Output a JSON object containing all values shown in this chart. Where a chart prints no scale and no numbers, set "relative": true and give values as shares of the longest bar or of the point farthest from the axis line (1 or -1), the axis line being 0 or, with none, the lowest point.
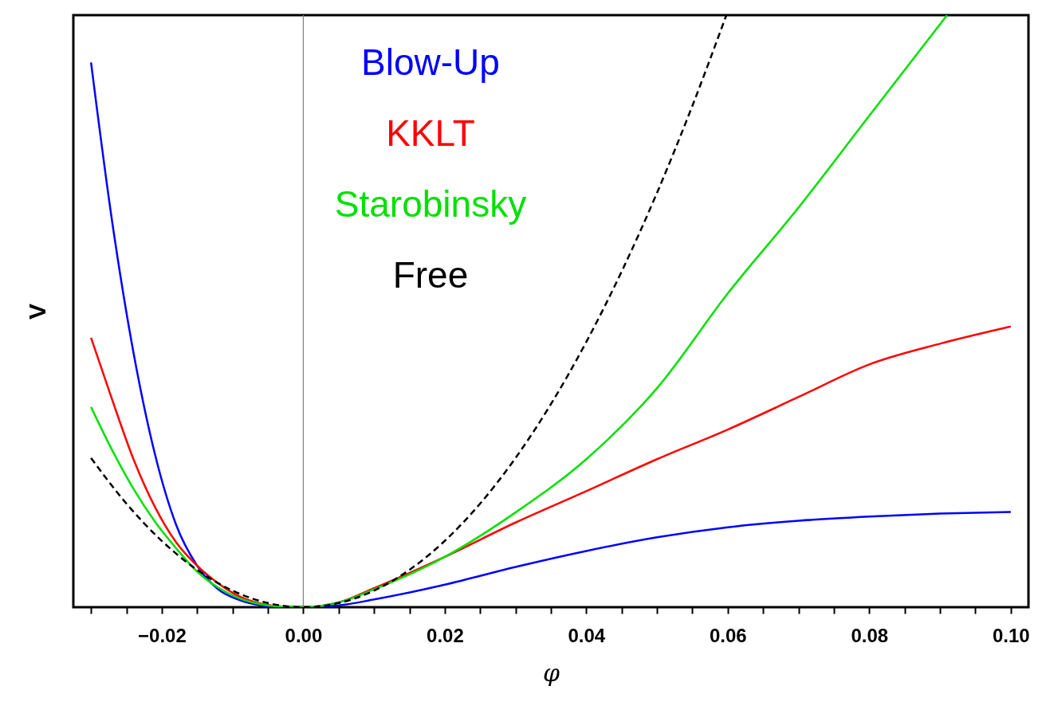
{
  "chart_data": {
    "type": "line",
    "xlabel": "φ",
    "ylabel": "V",
    "relative": true,
    "legend": "top left",
    "xlim": [
      -0.0325,
      0.1025
    ],
    "xticks": [
      {
        "value": -0.03,
        "label": null
      },
      {
        "value": -0.025,
        "label": null
      },
      {
        "value": -0.02,
        "label": "−0.02"
      },
      {
        "value": -0.015,
        "label": null
      },
      {
        "value": -0.01,
        "label": null
      },
      {
        "value": -0.005,
        "label": null
      },
      {
        "value": 0,
        "label": "0.00"
      },
      {
        "value": 0.005,
        "label": null
      },
      {
        "value": 0.01,
        "label": null
      },
      {
        "value": 0.015,
        "label": null
      },
      {
        "value": 0.02,
        "label": "0.02"
      },
      {
        "value": 0.025,
        "label": null
      },
      {
        "value": 0.03,
        "label": null
      },
      {
        "value": 0.035,
        "label": null
      },
      {
        "value": 0.04,
        "label": "0.04"
      },
      {
        "value": 0.045,
        "label": null
      },
      {
        "value": 0.05,
        "label": null
      },
      {
        "value": 0.055,
        "label": null
      },
      {
        "value": 0.06,
        "label": "0.06"
      },
      {
        "value": 0.065,
        "label": null
      },
      {
        "value": 0.07,
        "label": null
      },
      {
        "value": 0.075,
        "label": null
      },
      {
        "value": 0.08,
        "label": "0.08"
      },
      {
        "value": 0.085,
        "label": null
      },
      {
        "value": 0.09,
        "label": null
      },
      {
        "value": 0.095,
        "label": null
      },
      {
        "value": 0.1,
        "label": "0.10"
      }
    ],
    "ref_lines": [
      {
        "axis": "x",
        "value": 0,
        "color": "#808080"
      }
    ],
    "series": [
      {
        "name": "Blow-Up",
        "color": "#0000ff",
        "line_style": "solid",
        "x": [
          -0.03,
          -0.027,
          -0.024,
          -0.021,
          -0.018,
          -0.015,
          -0.012,
          -0.009,
          -0.006,
          -0.003,
          0,
          0.005,
          0.01,
          0.02,
          0.03,
          0.04,
          0.05,
          0.06,
          0.07,
          0.08,
          0.09,
          0.1
        ],
        "values": [
          0.92,
          0.65,
          0.43,
          0.26,
          0.14,
          0.07,
          0.03,
          0.012,
          0.003,
          0,
          0,
          0.003,
          0.013,
          0.038,
          0.068,
          0.095,
          0.118,
          0.135,
          0.146,
          0.153,
          0.158,
          0.161
        ]
      },
      {
        "name": "KKLT",
        "color": "#ff0000",
        "line_style": "solid",
        "x": [
          -0.03,
          -0.027,
          -0.024,
          -0.021,
          -0.018,
          -0.015,
          -0.012,
          -0.009,
          -0.006,
          -0.003,
          0,
          0.005,
          0.01,
          0.02,
          0.03,
          0.04,
          0.05,
          0.06,
          0.07,
          0.08,
          0.09,
          0.1
        ],
        "values": [
          0.455,
          0.35,
          0.25,
          0.17,
          0.11,
          0.07,
          0.04,
          0.018,
          0.006,
          0.001,
          0,
          0.008,
          0.032,
          0.085,
          0.143,
          0.196,
          0.25,
          0.3,
          0.355,
          0.41,
          0.445,
          0.474
        ]
      },
      {
        "name": "Starobinsky",
        "color": "#00e000",
        "line_style": "solid",
        "x": [
          -0.03,
          -0.027,
          -0.024,
          -0.021,
          -0.018,
          -0.015,
          -0.012,
          -0.009,
          -0.006,
          -0.003,
          0,
          0.005,
          0.01,
          0.02,
          0.03,
          0.04,
          0.05,
          0.06,
          0.07,
          0.08,
          0.091
        ],
        "values": [
          0.338,
          0.265,
          0.2,
          0.145,
          0.1,
          0.06,
          0.033,
          0.015,
          0.005,
          0.001,
          0,
          0.008,
          0.03,
          0.085,
          0.16,
          0.25,
          0.37,
          0.53,
          0.675,
          0.83,
          1
        ]
      },
      {
        "name": "Free",
        "color": "#000000",
        "line_style": "dashed",
        "x": [
          -0.03,
          -0.025,
          -0.02,
          -0.015,
          -0.01,
          -0.005,
          0,
          0.005,
          0.01,
          0.015,
          0.02,
          0.025,
          0.03,
          0.035,
          0.04,
          0.045,
          0.05,
          0.055,
          0.0598
        ],
        "values": [
          0.252,
          0.175,
          0.112,
          0.063,
          0.028,
          0.007,
          0,
          0.007,
          0.028,
          0.063,
          0.112,
          0.175,
          0.252,
          0.343,
          0.448,
          0.567,
          0.7,
          0.847,
          1
        ]
      }
    ]
  }
}
